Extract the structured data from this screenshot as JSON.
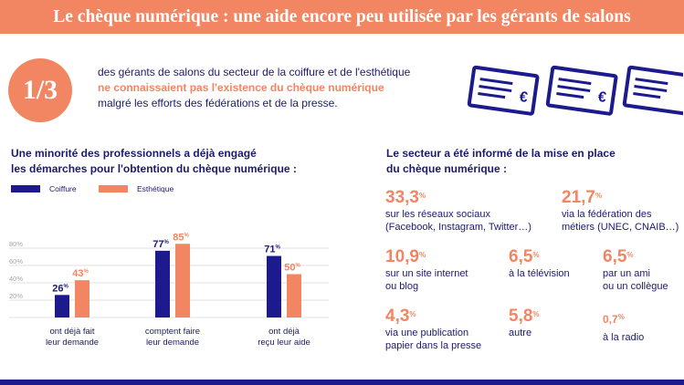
{
  "header": {
    "title": "Le chèque numérique : une aide encore peu utilisée par les gérants de salons"
  },
  "intro": {
    "ratio": "1/3",
    "line1": "des gérants de salons du secteur de la coiffure et de l'esthétique",
    "line2_highlight": "ne connaissaient pas l'existence du chèque numérique",
    "line3": "malgré les efforts des fédérations et de la presse."
  },
  "icons": {
    "cheque": "cheque-euro-icon",
    "currency_symbol": "€"
  },
  "colors": {
    "accent": "#f28562",
    "primary": "#1c1a8c",
    "text": "#1c1a6e",
    "grid": "#d8d8de"
  },
  "left_section": {
    "title_line1": "Une minorité des professionnels a déjà engagé",
    "title_line2": "les démarches pour l'obtention du chèque numérique :"
  },
  "right_section": {
    "title_line1": "Le secteur a été informé de la mise en place",
    "title_line2": "du chèque numérique :"
  },
  "chart_data": {
    "type": "bar",
    "categories": [
      [
        "ont déjà fait",
        "leur demande"
      ],
      [
        "comptent faire",
        "leur demande"
      ],
      [
        "ont déjà",
        "reçu leur aide"
      ]
    ],
    "series": [
      {
        "name": "Coiffure",
        "values": [
          26,
          77,
          71
        ],
        "color": "#1c1a8c"
      },
      {
        "name": "Esthétique",
        "values": [
          43,
          85,
          50
        ],
        "color": "#f28562"
      }
    ],
    "data_labels": [
      [
        "26",
        "43"
      ],
      [
        "77",
        "85"
      ],
      [
        "71",
        "50"
      ]
    ],
    "label_suffix": "%",
    "yticks": [
      "20%",
      "40%",
      "60%",
      "80%"
    ],
    "ytick_values": [
      20,
      40,
      60,
      80
    ],
    "ylim": [
      0,
      100
    ],
    "grid": true,
    "legend_position": "top-left"
  },
  "sources": [
    {
      "value": "33,3",
      "suffix": "%",
      "desc": [
        "sur les réseaux sociaux",
        "(Facebook, Instagram, Twitter…)"
      ]
    },
    {
      "value": "21,7",
      "suffix": "%",
      "desc": [
        "via la fédération des",
        "métiers (UNEC, CNAIB…)"
      ]
    },
    {
      "value": "10,9",
      "suffix": "%",
      "desc": [
        "sur un site internet",
        "ou blog"
      ]
    },
    {
      "value": "6,5",
      "suffix": "%",
      "desc": [
        "à la télévision"
      ]
    },
    {
      "value": "6,5",
      "suffix": "%",
      "desc": [
        "par un ami",
        "ou un collègue"
      ]
    },
    {
      "value": "4,3",
      "suffix": "%",
      "desc": [
        "via une publication",
        "papier dans la presse"
      ]
    },
    {
      "value": "5,8",
      "suffix": "%",
      "desc": [
        "autre"
      ]
    },
    {
      "value": "0,7",
      "suffix": "%",
      "desc": [
        "à la radio"
      ]
    }
  ]
}
